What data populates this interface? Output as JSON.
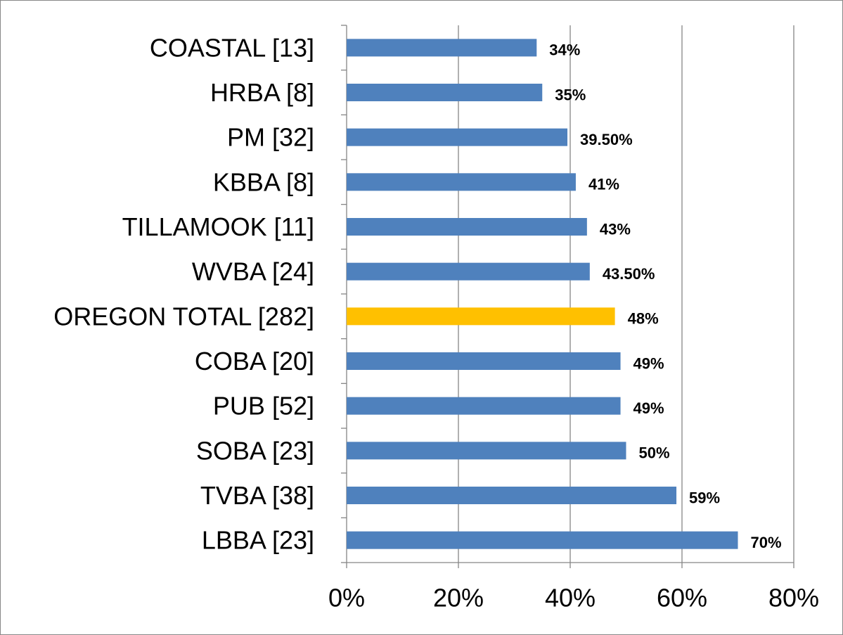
{
  "chart_data": {
    "type": "bar",
    "orientation": "horizontal",
    "categories": [
      "COASTAL [13]",
      "HRBA [8]",
      "PM [32]",
      "KBBA [8]",
      "TILLAMOOK [11]",
      "WVBA [24]",
      "OREGON TOTAL [282]",
      "COBA [20]",
      "PUB [52]",
      "SOBA [23]",
      "TVBA [38]",
      "LBBA [23]"
    ],
    "values": [
      34,
      35,
      39.5,
      41,
      43,
      43.5,
      48,
      49,
      49,
      50,
      59,
      70
    ],
    "value_labels": [
      "34%",
      "35%",
      "39.50%",
      "41%",
      "43%",
      "43.50%",
      "48%",
      "49%",
      "49%",
      "50%",
      "59%",
      "70%"
    ],
    "colors": [
      "#4f81bd",
      "#4f81bd",
      "#4f81bd",
      "#4f81bd",
      "#4f81bd",
      "#4f81bd",
      "#ffc000",
      "#4f81bd",
      "#4f81bd",
      "#4f81bd",
      "#4f81bd",
      "#4f81bd"
    ],
    "xlim": [
      0,
      80
    ],
    "xticks": [
      {
        "value": 0,
        "label": "0%"
      },
      {
        "value": 20,
        "label": "20%"
      },
      {
        "value": 40,
        "label": "40%"
      },
      {
        "value": 60,
        "label": "60%"
      },
      {
        "value": 80,
        "label": "80%"
      }
    ],
    "grid": true
  }
}
